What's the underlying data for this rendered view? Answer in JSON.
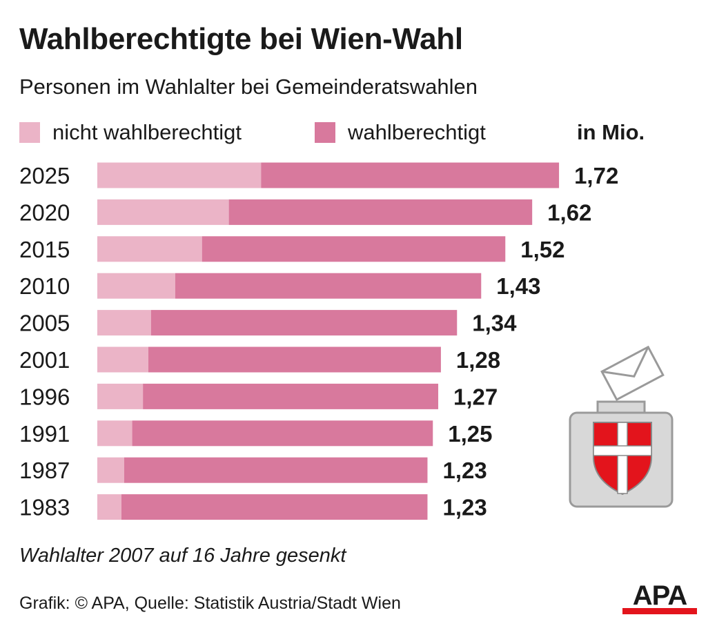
{
  "title": "Wahlberechtigte bei Wien-Wahl",
  "subtitle": "Personen im Wahlalter bei Gemeinderatswahlen",
  "legend": {
    "not_eligible": "nicht wahlberechtigt",
    "eligible": "wahlberechtigt",
    "unit": "in Mio."
  },
  "colors": {
    "not_eligible": "#ebb4c7",
    "eligible": "#d8799d",
    "flag_red": "#e3141c"
  },
  "chart_data": {
    "type": "bar",
    "orientation": "horizontal",
    "stacked": true,
    "categories": [
      "2025",
      "2020",
      "2015",
      "2010",
      "2005",
      "2001",
      "1996",
      "1991",
      "1987",
      "1983"
    ],
    "series": [
      {
        "name": "nicht wahlberechtigt",
        "values": [
          0.61,
          0.49,
          0.39,
          0.29,
          0.2,
          0.19,
          0.17,
          0.13,
          0.1,
          0.09
        ]
      },
      {
        "name": "wahlberechtigt",
        "values": [
          1.11,
          1.13,
          1.13,
          1.14,
          1.14,
          1.09,
          1.1,
          1.12,
          1.13,
          1.14
        ]
      }
    ],
    "totals": [
      1.72,
      1.62,
      1.52,
      1.43,
      1.34,
      1.28,
      1.27,
      1.25,
      1.23,
      1.23
    ],
    "total_labels": [
      "1,72",
      "1,62",
      "1,52",
      "1,43",
      "1,34",
      "1,28",
      "1,27",
      "1,25",
      "1,23",
      "1,23"
    ],
    "unit": "in Mio.",
    "xlim": [
      0,
      1.8
    ],
    "grid": false,
    "legend_position": "top"
  },
  "note": "Wahlalter 2007 auf 16 Jahre gesenkt",
  "source": "Grafik: © APA, Quelle: Statistik Austria/Stadt Wien",
  "logo_text": "APA"
}
